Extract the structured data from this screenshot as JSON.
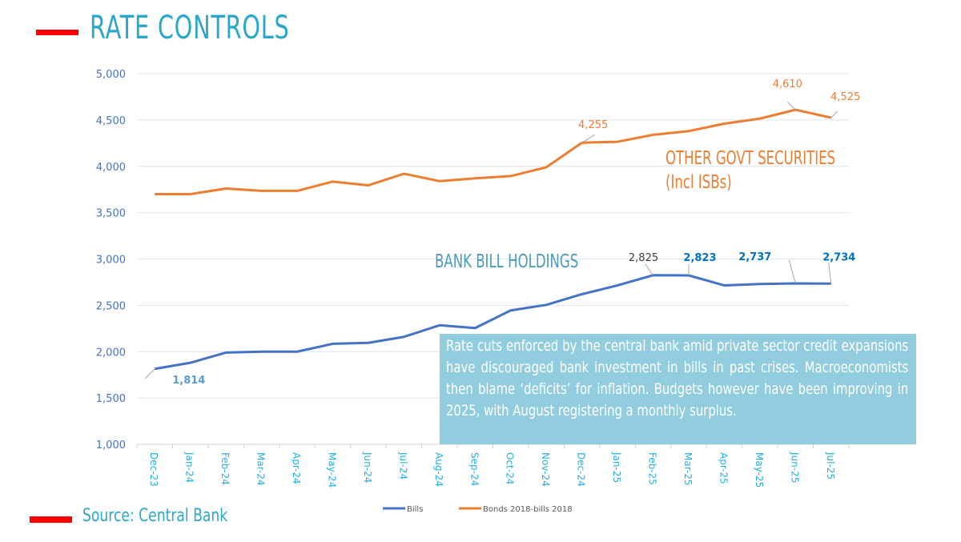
{
  "header": {
    "title": "RATE CONTROLS",
    "accent_color": "#ff0000",
    "title_color": "#2aa7c9"
  },
  "footer": {
    "source": "Source: Central Bank"
  },
  "annotation": {
    "text": "Rate cuts enforced by the central bank amid private sector credit expansions have discouraged bank investment in bills in past crises. Macroeconomists then blame ‘deficits’ for inflation. Budgets however have been improving in 2025, with August registering a monthly surplus.",
    "background": "#92cddf"
  },
  "series_labels": {
    "bonds_line1": "OTHER GOVT SECURITIES",
    "bonds_line2": "(Incl ISBs)",
    "bills": "BANK BILL HOLDINGS"
  },
  "chart_data": {
    "type": "line",
    "title": "",
    "xlabel": "",
    "ylabel": "",
    "ylim": [
      1000,
      5000
    ],
    "yticks": [
      1000,
      1500,
      2000,
      2500,
      3000,
      3500,
      4000,
      4500,
      5000
    ],
    "ytick_labels": [
      "1,000",
      "1,500",
      "2,000",
      "2,500",
      "3,000",
      "3,500",
      "4,000",
      "4,500",
      "5,000"
    ],
    "grid": true,
    "legend_position": "bottom",
    "categories": [
      "Dec-23",
      "Jan-24",
      "Feb-24",
      "Mar-24",
      "Apr-24",
      "May-24",
      "Jun-24",
      "Jul-24",
      "Aug-24",
      "Sep-24",
      "Oct-24",
      "Nov-24",
      "Dec-24",
      "Jan-25",
      "Feb-25",
      "Mar-25",
      "Apr-25",
      "May-25",
      "Jun-25",
      "Jul-25"
    ],
    "series": [
      {
        "name": "Bills",
        "color": "#4472c4",
        "values": [
          1814,
          1880,
          1990,
          2000,
          2000,
          2085,
          2095,
          2160,
          2285,
          2255,
          2445,
          2505,
          2620,
          2715,
          2825,
          2823,
          2715,
          2730,
          2737,
          2734
        ],
        "data_labels": [
          {
            "index": 0,
            "text": "1,814",
            "color": "#5b9bd5"
          },
          {
            "index": 14,
            "text": "2,825",
            "color": "#404040"
          },
          {
            "index": 15,
            "text": "2,823",
            "color": "#0070c0"
          },
          {
            "index": 18,
            "text": "2,737",
            "color": "#0070c0"
          },
          {
            "index": 19,
            "text": "2,734",
            "color": "#0070c0"
          }
        ]
      },
      {
        "name": "Bonds 2018-bills 2018",
        "color": "#ed7d31",
        "values": [
          3700,
          3700,
          3760,
          3735,
          3735,
          3835,
          3795,
          3920,
          3840,
          3870,
          3895,
          3990,
          4255,
          4265,
          4340,
          4380,
          4460,
          4515,
          4610,
          4525
        ],
        "data_labels": [
          {
            "index": 12,
            "text": "4,255",
            "color": "#ed7d31"
          },
          {
            "index": 18,
            "text": "4,610",
            "color": "#ed7d31"
          },
          {
            "index": 19,
            "text": "4,525",
            "color": "#ed7d31"
          }
        ]
      }
    ]
  }
}
